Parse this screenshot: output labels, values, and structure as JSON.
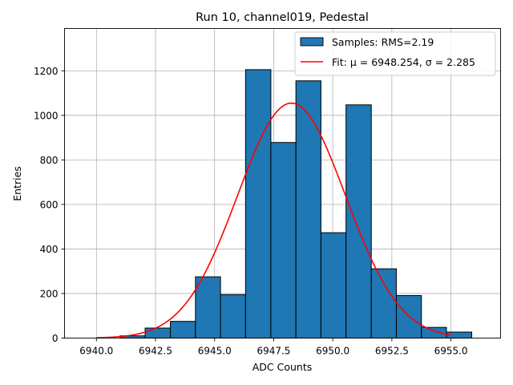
{
  "chart_data": {
    "type": "bar",
    "title": "Run 10, channel019, Pedestal",
    "xlabel": "ADC Counts",
    "ylabel": "Entries",
    "xlim": [
      6938.65,
      6957.1
    ],
    "ylim": [
      0,
      1390
    ],
    "grid": true,
    "legend_position": "top-right",
    "x_ticks": [
      6940.0,
      6942.5,
      6945.0,
      6947.5,
      6950.0,
      6952.5,
      6955.0
    ],
    "x_tick_labels": [
      "6940.0",
      "6942.5",
      "6945.0",
      "6947.5",
      "6950.0",
      "6952.5",
      "6955.0"
    ],
    "y_ticks": [
      0,
      200,
      400,
      600,
      800,
      1000,
      1200
    ],
    "y_tick_labels": [
      "0",
      "200",
      "400",
      "600",
      "800",
      "1000",
      "1200"
    ],
    "histogram": {
      "name": "Samples: RMS=2.19",
      "color": "#1f77b4",
      "edgecolor": "#000000",
      "bins": [
        {
          "left": 6941.0,
          "right": 6942.06,
          "count": 10
        },
        {
          "left": 6942.06,
          "right": 6943.13,
          "count": 45
        },
        {
          "left": 6943.13,
          "right": 6944.19,
          "count": 75
        },
        {
          "left": 6944.19,
          "right": 6945.25,
          "count": 275
        },
        {
          "left": 6945.25,
          "right": 6946.31,
          "count": 195
        },
        {
          "left": 6946.31,
          "right": 6947.38,
          "count": 1205
        },
        {
          "left": 6947.38,
          "right": 6948.44,
          "count": 878
        },
        {
          "left": 6948.44,
          "right": 6949.5,
          "count": 1155
        },
        {
          "left": 6949.5,
          "right": 6950.56,
          "count": 473
        },
        {
          "left": 6950.56,
          "right": 6951.63,
          "count": 1047
        },
        {
          "left": 6951.63,
          "right": 6952.69,
          "count": 311
        },
        {
          "left": 6952.69,
          "right": 6953.75,
          "count": 191
        },
        {
          "left": 6953.75,
          "right": 6954.81,
          "count": 48
        },
        {
          "left": 6954.81,
          "right": 6955.88,
          "count": 27
        }
      ]
    },
    "fit": {
      "name": "Fit: μ = 6948.254, σ = 2.285",
      "color": "#ff0000",
      "mu": 6948.254,
      "sigma": 2.285,
      "peak": 1055,
      "x_range": [
        6940.0,
        6955.0
      ]
    }
  }
}
